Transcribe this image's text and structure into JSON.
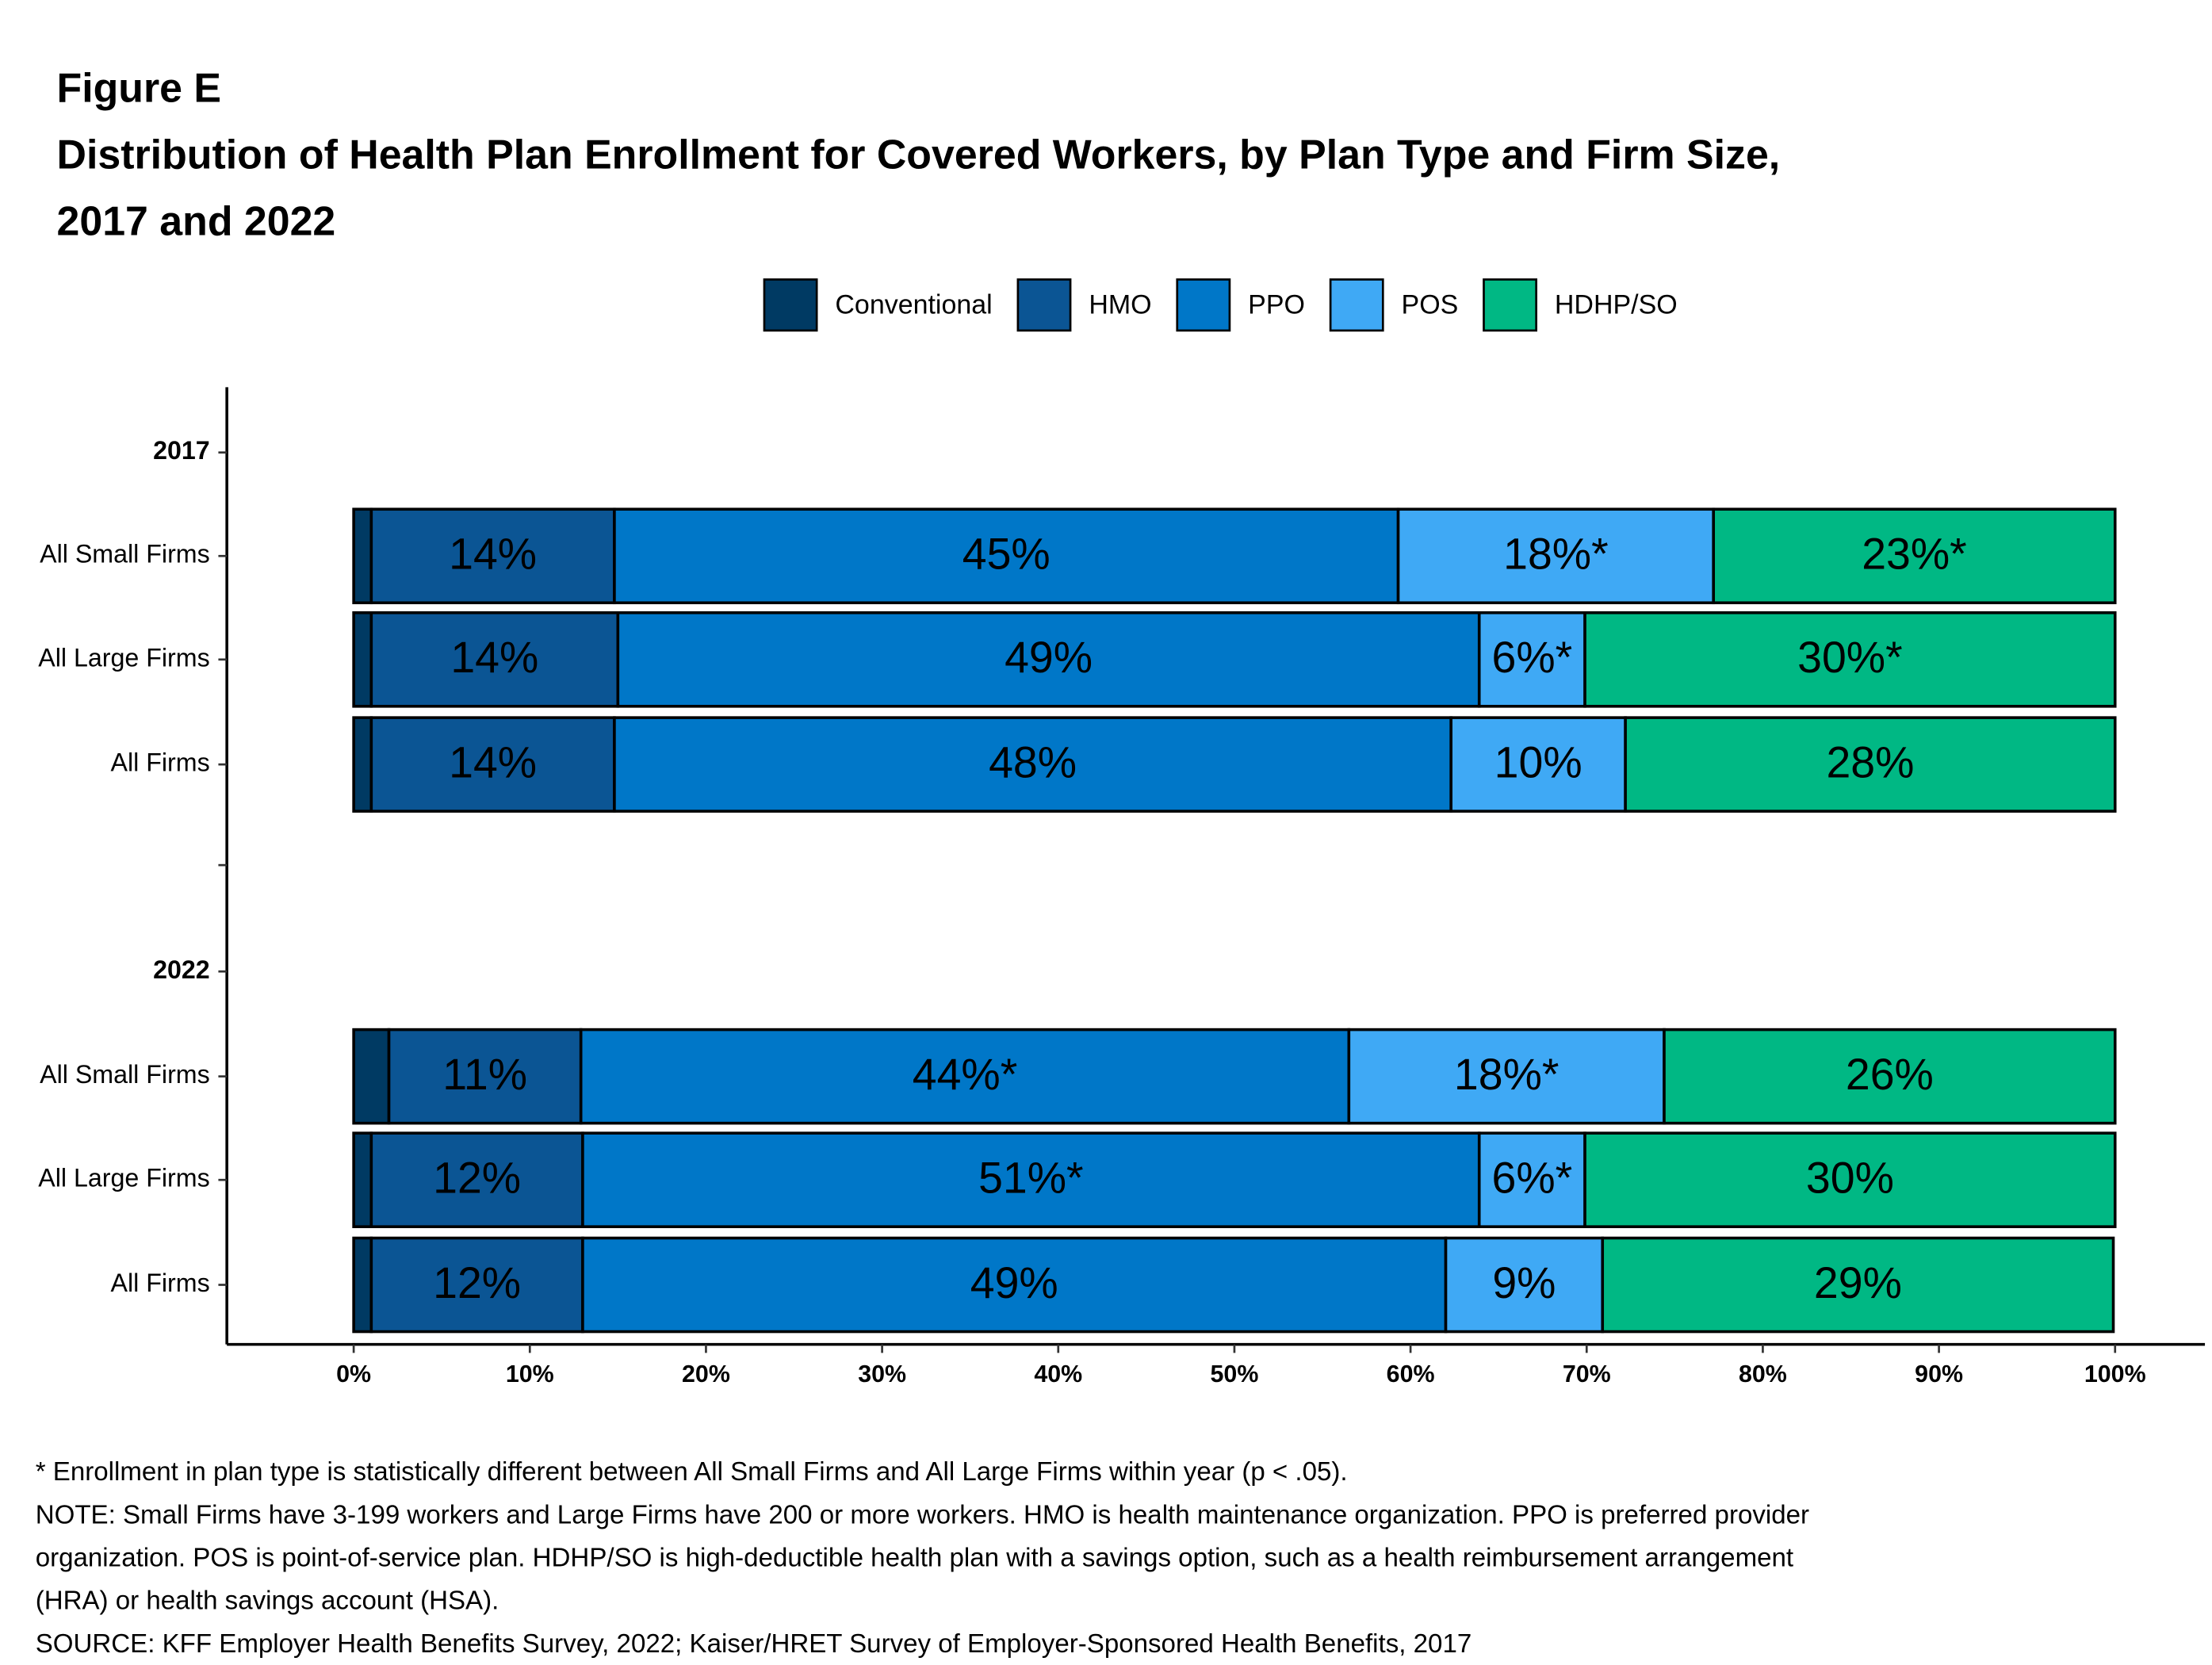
{
  "chart_data": {
    "type": "stacked-bar-horizontal",
    "title": "Figure E",
    "subtitle": [
      "Distribution of Health Plan Enrollment for Covered Workers, by Plan Type and Firm Size,",
      "2017 and 2022"
    ],
    "categories": [
      "2017",
      "All Small Firms",
      "All Large Firms",
      "All Firms",
      null,
      "2022",
      "All Small Firms",
      "All Large Firms",
      "All Firms"
    ],
    "series": [
      {
        "name": "Conventional",
        "color": "#003a63",
        "values": [
          null,
          1.0,
          1.0,
          1.0,
          null,
          null,
          2.0,
          1.0,
          1.0
        ]
      },
      {
        "name": "HMO",
        "color": "#0b5594",
        "values": [
          null,
          13.8,
          14.0,
          13.8,
          null,
          null,
          10.9,
          12.0,
          12.0
        ],
        "value_labels": [
          null,
          "14%",
          "14%",
          "14%",
          null,
          null,
          "11%",
          "12%",
          "12%"
        ]
      },
      {
        "name": "PPO",
        "color": "#0077c8",
        "values": [
          null,
          44.5,
          48.9,
          47.5,
          null,
          null,
          43.6,
          50.9,
          49.0
        ],
        "value_labels": [
          null,
          "45%",
          "49%",
          "48%",
          null,
          null,
          "44%*",
          "51%*",
          "49%"
        ]
      },
      {
        "name": "POS",
        "color": "#3fa9f5",
        "values": [
          null,
          17.9,
          6.0,
          9.9,
          null,
          null,
          17.9,
          6.0,
          8.9
        ],
        "value_labels": [
          null,
          "18%*",
          "6%*",
          "10%",
          null,
          null,
          "18%*",
          "6%*",
          "9%"
        ]
      },
      {
        "name": "HDHP/SO",
        "color": "#00b884",
        "values": [
          null,
          22.8,
          30.1,
          27.8,
          null,
          null,
          25.6,
          30.1,
          29.0
        ],
        "value_labels": [
          null,
          "23%*",
          "30%*",
          "28%",
          null,
          null,
          "26%",
          "30%",
          "29%"
        ]
      }
    ],
    "xlim": [
      -7.2,
      105.1
    ],
    "xticks": [
      {
        "value": 0,
        "label": "0%"
      },
      {
        "value": 10,
        "label": "10%"
      },
      {
        "value": 20,
        "label": "20%"
      },
      {
        "value": 30,
        "label": "30%"
      },
      {
        "value": 40,
        "label": "40%"
      },
      {
        "value": 50,
        "label": "50%"
      },
      {
        "value": 60,
        "label": "60%"
      },
      {
        "value": 70,
        "label": "70%"
      },
      {
        "value": 80,
        "label": "80%"
      },
      {
        "value": 90,
        "label": "90%"
      },
      {
        "value": 100,
        "label": "100%"
      }
    ],
    "grid": false,
    "legend": "top",
    "notes": [
      "* Enrollment in plan type is statistically different between All Small Firms and All Large Firms within year (p < .05).",
      "NOTE: Small Firms have 3-199 workers and Large Firms have 200 or more workers. HMO is health maintenance organization. PPO is preferred provider",
      "organization. POS is point-of-service plan. HDHP/SO is high-deductible health plan with a savings option, such as a health reimbursement arrangement",
      "(HRA) or health savings account (HSA).",
      "SOURCE: KFF Employer Health Benefits Survey, 2022; Kaiser/HRET Survey of Employer-Sponsored Health Benefits, 2017"
    ]
  }
}
